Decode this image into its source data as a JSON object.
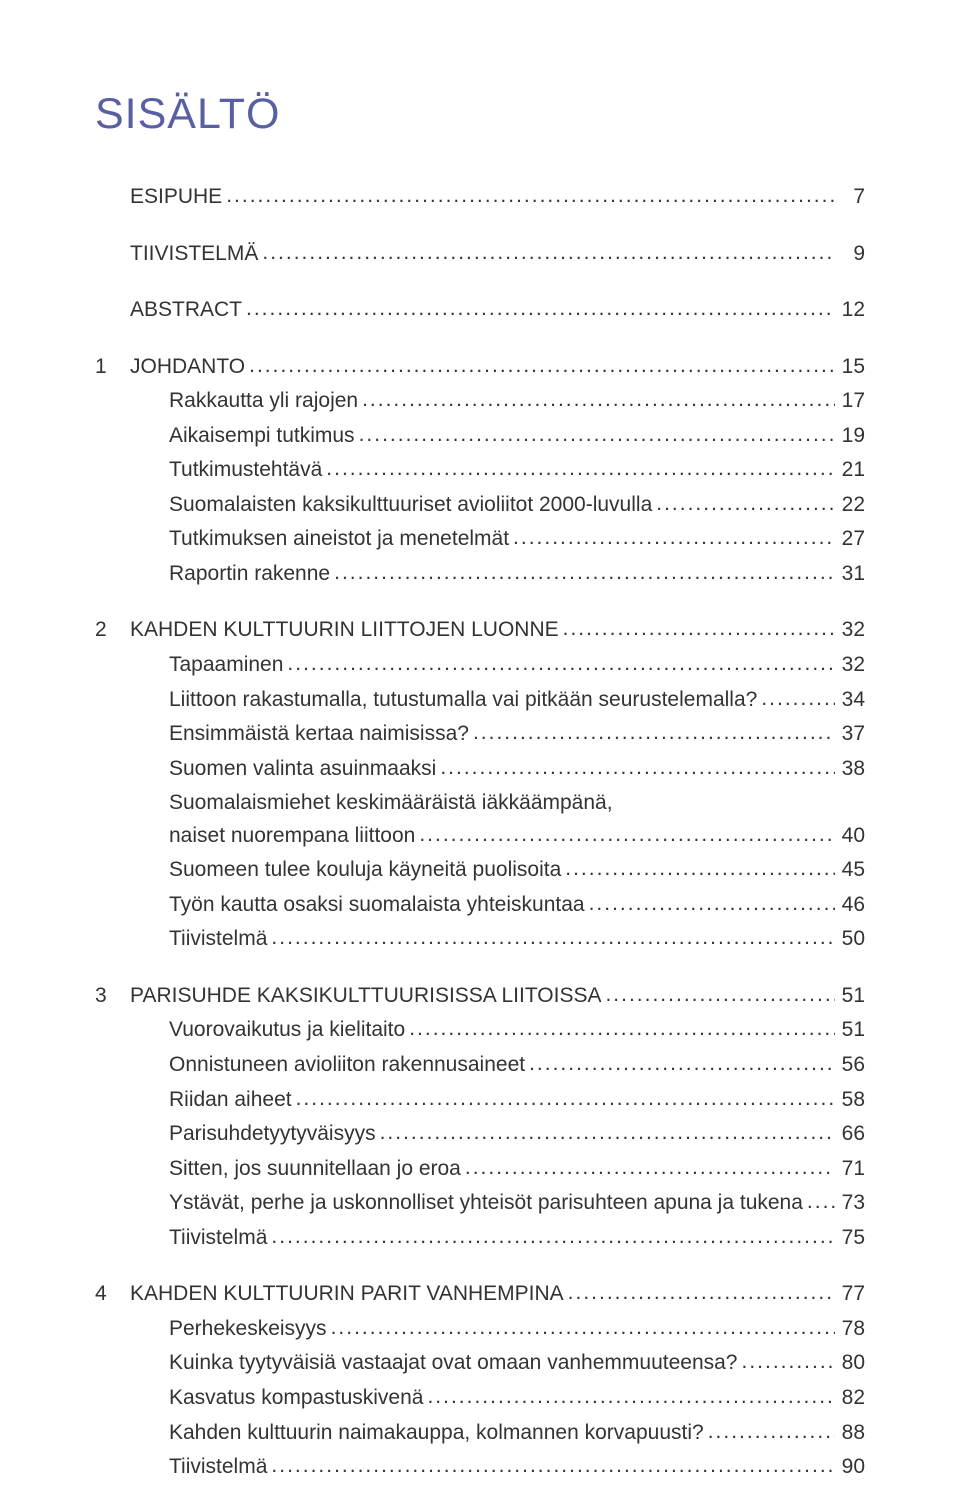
{
  "title": "SISÄLTÖ",
  "title_color": "#5a5fa3",
  "text_color": "#333333",
  "entries": [
    {
      "type": "section",
      "num": "",
      "label": "ESIPUHE",
      "page": "7",
      "first": true
    },
    {
      "type": "section",
      "num": "",
      "label": "TIIVISTELMÄ",
      "page": "9"
    },
    {
      "type": "section",
      "num": "",
      "label": "ABSTRACT",
      "page": "12"
    },
    {
      "type": "section",
      "num": "1",
      "label": "JOHDANTO",
      "page": "15"
    },
    {
      "type": "sub",
      "label": "Rakkautta yli rajojen",
      "page": "17"
    },
    {
      "type": "sub",
      "label": "Aikaisempi tutkimus",
      "page": "19"
    },
    {
      "type": "sub",
      "label": "Tutkimustehtävä",
      "page": "21"
    },
    {
      "type": "sub",
      "label": "Suomalaisten kaksikulttuuriset avioliitot 2000-luvulla",
      "page": "22"
    },
    {
      "type": "sub",
      "label": "Tutkimuksen aineistot ja menetelmät",
      "page": "27"
    },
    {
      "type": "sub",
      "label": "Raportin rakenne",
      "page": "31"
    },
    {
      "type": "section",
      "num": "2",
      "label": "KAHDEN KULTTUURIN LIITTOJEN LUONNE",
      "page": "32"
    },
    {
      "type": "sub",
      "label": "Tapaaminen",
      "page": "32"
    },
    {
      "type": "sub",
      "label": "Liittoon rakastumalla, tutustumalla vai pitkään seurustelemalla?",
      "page": "34"
    },
    {
      "type": "sub",
      "label": "Ensimmäistä kertaa naimisissa?",
      "page": "37"
    },
    {
      "type": "sub",
      "label": "Suomen valinta asuinmaaksi",
      "page": "38"
    },
    {
      "type": "sub-wrap",
      "line1": "Suomalaismiehet keskimääräistä iäkkäämpänä,",
      "line2": "naiset nuorempana liittoon",
      "page": "40"
    },
    {
      "type": "sub",
      "label": "Suomeen tulee kouluja käyneitä puolisoita",
      "page": "45"
    },
    {
      "type": "sub",
      "label": "Työn kautta osaksi suomalaista yhteiskuntaa",
      "page": "46"
    },
    {
      "type": "sub",
      "label": "Tiivistelmä",
      "page": "50"
    },
    {
      "type": "section",
      "num": "3",
      "label": "PARISUHDE KAKSIKULTTUURISISSA LIITOISSA",
      "page": "51"
    },
    {
      "type": "sub",
      "label": "Vuorovaikutus ja kielitaito",
      "page": "51"
    },
    {
      "type": "sub",
      "label": "Onnistuneen avioliiton rakennusaineet",
      "page": "56"
    },
    {
      "type": "sub",
      "label": "Riidan aiheet",
      "page": "58"
    },
    {
      "type": "sub",
      "label": "Parisuhdetyytyväisyys",
      "page": "66"
    },
    {
      "type": "sub",
      "label": "Sitten, jos suunnitellaan jo eroa",
      "page": "71"
    },
    {
      "type": "sub",
      "label": "Ystävät, perhe ja uskonnolliset yhteisöt parisuhteen apuna ja tukena",
      "page": "73"
    },
    {
      "type": "sub",
      "label": "Tiivistelmä",
      "page": "75"
    },
    {
      "type": "section",
      "num": "4",
      "label": "KAHDEN KULTTUURIN PARIT VANHEMPINA",
      "page": "77"
    },
    {
      "type": "sub",
      "label": "Perhekeskeisyys",
      "page": "78"
    },
    {
      "type": "sub",
      "label": "Kuinka tyytyväisiä vastaajat ovat omaan vanhemmuuteensa?",
      "page": "80"
    },
    {
      "type": "sub",
      "label": "Kasvatus kompastuskivenä",
      "page": "82"
    },
    {
      "type": "sub",
      "label": "Kahden kulttuurin naimakauppa, kolmannen korvapuusti?",
      "page": "88"
    },
    {
      "type": "sub",
      "label": "Tiivistelmä",
      "page": "90"
    }
  ]
}
